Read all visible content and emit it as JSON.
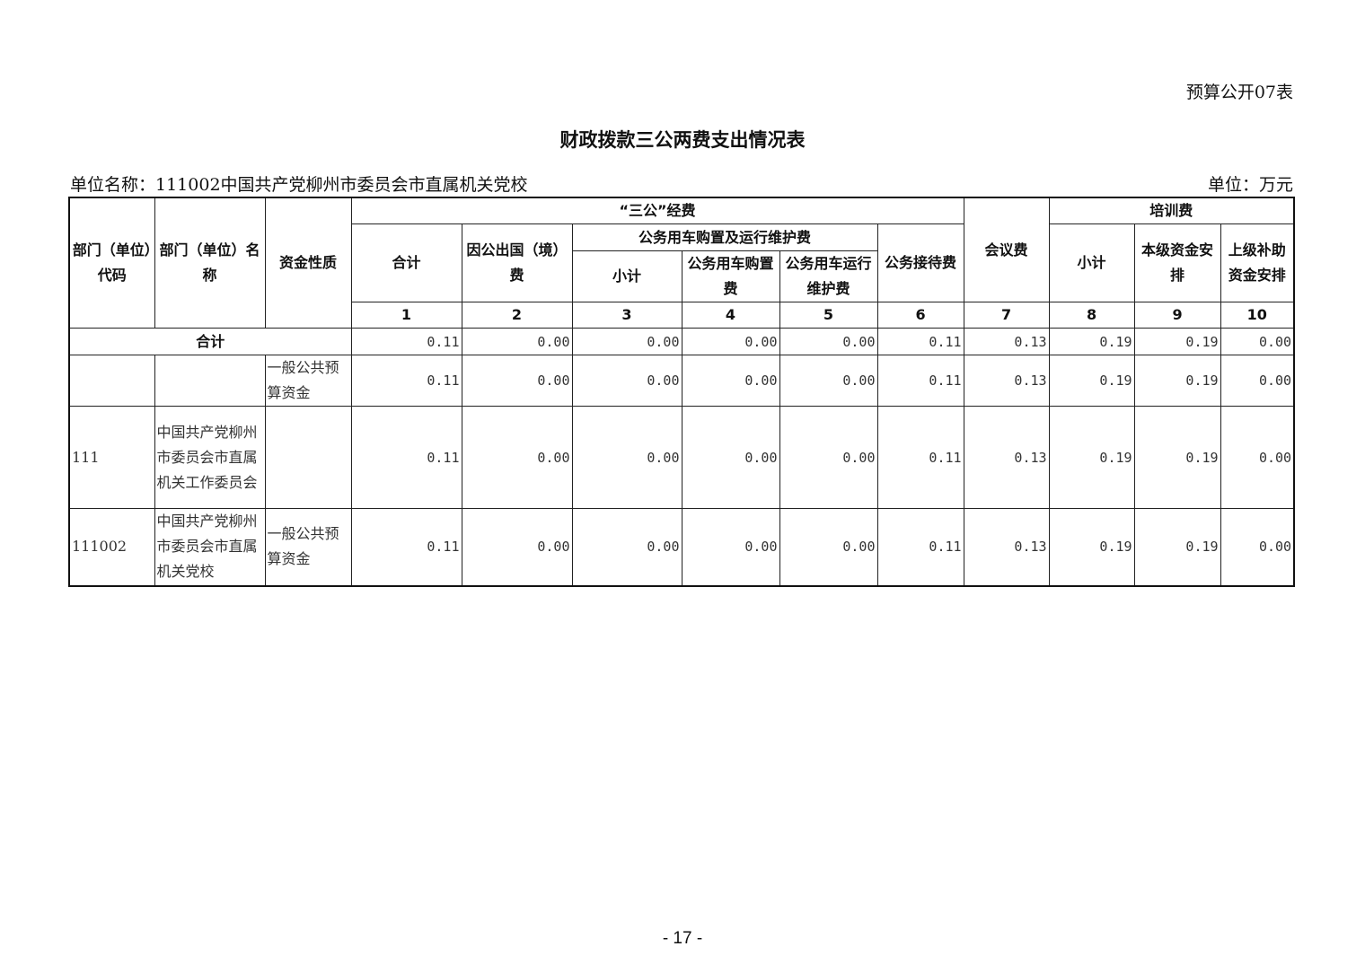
{
  "form_number": "预算公开07表",
  "title": "财政拨款三公两费支出情况表",
  "unit_name": "单位名称：111002中国共产党柳州市委员会市直属机关党校",
  "unit": "单位：万元",
  "header": {
    "dept_code": "部门（单位）代码",
    "dept_name": "部门（单位）名称",
    "fund_nature": "资金性质",
    "three_public": "“三公”经费",
    "total": "合计",
    "overseas": "因公出国（境）费",
    "vehicle": "公务用车购置及运行维护费",
    "vehicle_subtotal": "小计",
    "vehicle_purchase": "公务用车购置费",
    "vehicle_operation": "公务用车运行维护费",
    "reception": "公务接待费",
    "meeting": "会议费",
    "training": "培训费",
    "training_subtotal": "小计",
    "training_own": "本级资金安排",
    "training_superior": "上级补助资金安排",
    "col_numbers": [
      "1",
      "2",
      "3",
      "4",
      "5",
      "6",
      "7",
      "8",
      "9",
      "10"
    ]
  },
  "total_row": {
    "label": "合计",
    "values": [
      "0.11",
      "0.00",
      "0.00",
      "0.00",
      "0.00",
      "0.11",
      "0.13",
      "0.19",
      "0.19",
      "0.00"
    ]
  },
  "rows": [
    {
      "code": "",
      "name": "",
      "nature": "一般公共预算资金",
      "values": [
        "0.11",
        "0.00",
        "0.00",
        "0.00",
        "0.00",
        "0.11",
        "0.13",
        "0.19",
        "0.19",
        "0.00"
      ]
    },
    {
      "code": "111",
      "name": "中国共产党柳州市委员会市直属机关工作委员会",
      "nature": "",
      "values": [
        "0.11",
        "0.00",
        "0.00",
        "0.00",
        "0.00",
        "0.11",
        "0.13",
        "0.19",
        "0.19",
        "0.00"
      ]
    },
    {
      "code": "111002",
      "name": "中国共产党柳州市委员会市直属机关党校",
      "nature": "一般公共预算资金",
      "values": [
        "0.11",
        "0.00",
        "0.00",
        "0.00",
        "0.00",
        "0.11",
        "0.13",
        "0.19",
        "0.19",
        "0.00"
      ]
    }
  ],
  "page_number": "- 17 -"
}
